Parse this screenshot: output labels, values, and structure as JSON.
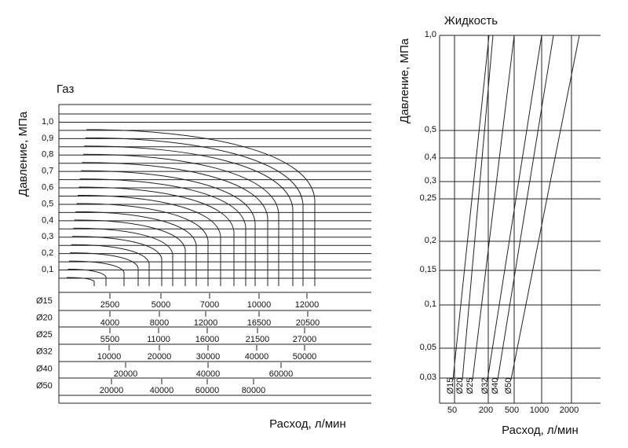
{
  "gas": {
    "title": "Газ",
    "y_label": "Давление, МПа",
    "yticks": [
      "1,0",
      "0,9",
      "0,8",
      "0,7",
      "0,6",
      "0,5",
      "0,4",
      "0,3",
      "0,2",
      "0,1"
    ],
    "scales": [
      {
        "label": "Ø15",
        "ticks": [
          "2500",
          "5000",
          "7000",
          "10000",
          "12000"
        ]
      },
      {
        "label": "Ø20",
        "ticks": [
          "4000",
          "8000",
          "12000",
          "16500",
          "20500"
        ]
      },
      {
        "label": "Ø25",
        "ticks": [
          "5500",
          "11000",
          "16000",
          "21500",
          "27000"
        ]
      },
      {
        "label": "Ø32",
        "ticks": [
          "10000",
          "20000",
          "30000",
          "40000",
          "50000"
        ]
      },
      {
        "label": "Ø40",
        "ticks": [
          "20000",
          "40000",
          "60000"
        ]
      },
      {
        "label": "Ø50",
        "ticks": [
          "20000",
          "40000",
          "60000",
          "80000"
        ]
      }
    ],
    "x_label": "Расход, л/мин"
  },
  "liquid": {
    "title": "Жидкость",
    "y_label": "Давление, МПа",
    "yticks": [
      "1,0",
      "0,5",
      "0,4",
      "0,3",
      "0,25",
      "0,2",
      "0,15",
      "0,1",
      "0,05",
      "0,03"
    ],
    "xticks": [
      "50",
      "200",
      "500",
      "1000",
      "2000"
    ],
    "lines": [
      "Ø15",
      "Ø20",
      "Ø25",
      "Ø32",
      "Ø40",
      "Ø50"
    ],
    "x_label": "Расход, л/мин"
  }
}
